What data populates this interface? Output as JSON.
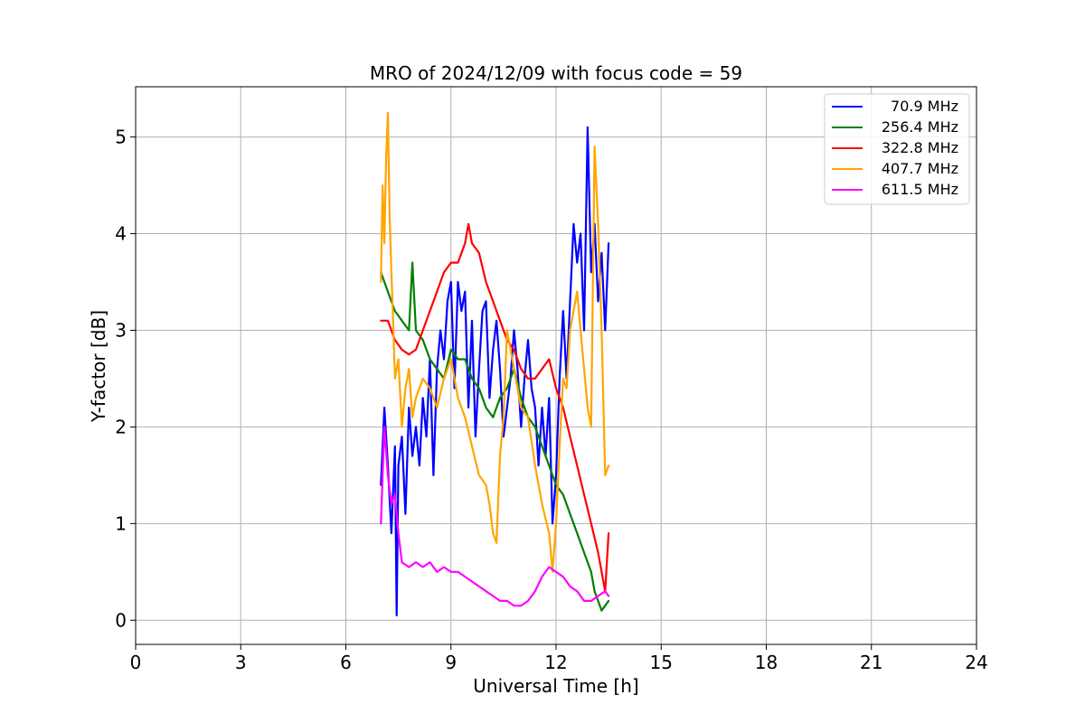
{
  "chart_data": {
    "type": "line",
    "title": "MRO of 2024/12/09 with focus code = 59",
    "xlabel": "Universal Time [h]",
    "ylabel": "Y-factor [dB]",
    "xlim": [
      0,
      24
    ],
    "ylim": [
      -0.25,
      5.52
    ],
    "xticks": [
      0,
      3,
      6,
      9,
      12,
      15,
      18,
      21,
      24
    ],
    "yticks": [
      0,
      1,
      2,
      3,
      4,
      5
    ],
    "grid": true,
    "legend_position": "top-right",
    "series": [
      {
        "name": " 70.9 MHz",
        "color": "#0000ff",
        "x": [
          7.0,
          7.1,
          7.2,
          7.3,
          7.4,
          7.45,
          7.5,
          7.6,
          7.7,
          7.8,
          7.9,
          8.0,
          8.1,
          8.2,
          8.3,
          8.4,
          8.5,
          8.6,
          8.7,
          8.8,
          8.9,
          9.0,
          9.1,
          9.2,
          9.3,
          9.4,
          9.5,
          9.6,
          9.7,
          9.8,
          9.9,
          10.0,
          10.1,
          10.2,
          10.3,
          10.4,
          10.5,
          10.6,
          10.7,
          10.8,
          10.9,
          11.0,
          11.1,
          11.2,
          11.3,
          11.4,
          11.5,
          11.6,
          11.7,
          11.8,
          11.9,
          12.0,
          12.1,
          12.2,
          12.3,
          12.4,
          12.5,
          12.6,
          12.7,
          12.8,
          12.9,
          13.0,
          13.1,
          13.2,
          13.3,
          13.4,
          13.5
        ],
        "y": [
          1.4,
          2.2,
          1.6,
          0.9,
          1.8,
          0.05,
          1.6,
          1.9,
          1.1,
          2.2,
          1.7,
          2.0,
          1.6,
          2.3,
          1.9,
          2.7,
          1.5,
          2.6,
          3.0,
          2.7,
          3.3,
          3.5,
          2.4,
          3.5,
          3.2,
          3.4,
          2.2,
          3.1,
          1.9,
          2.6,
          3.2,
          3.3,
          2.3,
          2.8,
          3.1,
          2.6,
          1.9,
          2.2,
          2.5,
          3.0,
          2.6,
          2.0,
          2.5,
          2.9,
          2.4,
          2.2,
          1.6,
          2.2,
          1.7,
          2.3,
          1.0,
          1.5,
          2.5,
          3.2,
          2.5,
          3.3,
          4.1,
          3.7,
          4.0,
          3.0,
          5.1,
          3.6,
          4.1,
          3.3,
          3.8,
          3.0,
          3.9
        ]
      },
      {
        "name": "256.4 MHz",
        "color": "#008000",
        "x": [
          7.0,
          7.2,
          7.4,
          7.6,
          7.8,
          7.9,
          8.0,
          8.2,
          8.4,
          8.6,
          8.8,
          9.0,
          9.2,
          9.4,
          9.6,
          9.8,
          10.0,
          10.2,
          10.4,
          10.6,
          10.8,
          11.0,
          11.2,
          11.4,
          11.6,
          11.8,
          12.0,
          12.2,
          12.4,
          12.6,
          12.8,
          13.0,
          13.1,
          13.2,
          13.3,
          13.4,
          13.5
        ],
        "y": [
          3.6,
          3.4,
          3.2,
          3.1,
          3.0,
          3.7,
          3.0,
          2.9,
          2.7,
          2.6,
          2.5,
          2.8,
          2.7,
          2.7,
          2.5,
          2.4,
          2.2,
          2.1,
          2.3,
          2.4,
          2.6,
          2.3,
          2.1,
          2.0,
          1.8,
          1.6,
          1.4,
          1.3,
          1.1,
          0.9,
          0.7,
          0.5,
          0.3,
          0.2,
          0.1,
          0.15,
          0.2
        ]
      },
      {
        "name": "322.8 MHz",
        "color": "#ff0000",
        "x": [
          7.0,
          7.2,
          7.4,
          7.6,
          7.8,
          8.0,
          8.2,
          8.4,
          8.6,
          8.8,
          9.0,
          9.2,
          9.4,
          9.5,
          9.6,
          9.8,
          10.0,
          10.2,
          10.4,
          10.6,
          10.8,
          11.0,
          11.2,
          11.4,
          11.6,
          11.8,
          12.0,
          12.2,
          12.4,
          12.6,
          12.8,
          13.0,
          13.2,
          13.3,
          13.4,
          13.5
        ],
        "y": [
          3.1,
          3.1,
          2.9,
          2.8,
          2.75,
          2.8,
          3.0,
          3.2,
          3.4,
          3.6,
          3.7,
          3.7,
          3.9,
          4.1,
          3.9,
          3.8,
          3.5,
          3.3,
          3.1,
          2.9,
          2.8,
          2.6,
          2.5,
          2.5,
          2.6,
          2.7,
          2.4,
          2.2,
          1.9,
          1.6,
          1.3,
          1.0,
          0.7,
          0.5,
          0.3,
          0.9
        ]
      },
      {
        "name": "407.7 MHz",
        "color": "#ffa500",
        "x": [
          7.0,
          7.05,
          7.1,
          7.15,
          7.2,
          7.25,
          7.3,
          7.35,
          7.4,
          7.5,
          7.6,
          7.7,
          7.8,
          7.9,
          8.0,
          8.2,
          8.4,
          8.6,
          8.8,
          9.0,
          9.2,
          9.4,
          9.6,
          9.8,
          10.0,
          10.1,
          10.2,
          10.3,
          10.4,
          10.5,
          10.6,
          10.8,
          11.0,
          11.2,
          11.4,
          11.6,
          11.8,
          11.9,
          12.0,
          12.1,
          12.2,
          12.3,
          12.4,
          12.5,
          12.6,
          12.7,
          12.8,
          12.9,
          13.0,
          13.1,
          13.2,
          13.3,
          13.4,
          13.5
        ],
        "y": [
          3.5,
          4.5,
          3.9,
          4.8,
          5.25,
          4.2,
          3.6,
          3.1,
          2.5,
          2.7,
          2.0,
          2.4,
          2.6,
          2.1,
          2.3,
          2.5,
          2.4,
          2.2,
          2.5,
          2.7,
          2.3,
          2.1,
          1.8,
          1.5,
          1.4,
          1.2,
          0.9,
          0.8,
          1.7,
          2.1,
          3.0,
          2.6,
          2.2,
          2.1,
          1.6,
          1.2,
          0.9,
          0.5,
          1.0,
          1.8,
          2.5,
          2.4,
          3.0,
          3.2,
          3.4,
          3.0,
          2.6,
          2.2,
          2.0,
          4.9,
          4.1,
          3.0,
          1.5,
          1.6
        ]
      },
      {
        "name": "611.5 MHz",
        "color": "#ff00ff",
        "x": [
          7.0,
          7.1,
          7.2,
          7.3,
          7.4,
          7.5,
          7.6,
          7.8,
          8.0,
          8.2,
          8.4,
          8.6,
          8.8,
          9.0,
          9.2,
          9.4,
          9.6,
          9.8,
          10.0,
          10.2,
          10.4,
          10.6,
          10.8,
          11.0,
          11.2,
          11.4,
          11.6,
          11.8,
          12.0,
          12.2,
          12.4,
          12.6,
          12.8,
          13.0,
          13.2,
          13.4,
          13.5
        ],
        "y": [
          1.0,
          2.0,
          1.5,
          1.2,
          1.3,
          0.9,
          0.6,
          0.55,
          0.6,
          0.55,
          0.6,
          0.5,
          0.55,
          0.5,
          0.5,
          0.45,
          0.4,
          0.35,
          0.3,
          0.25,
          0.2,
          0.2,
          0.15,
          0.15,
          0.2,
          0.3,
          0.45,
          0.55,
          0.5,
          0.45,
          0.35,
          0.3,
          0.2,
          0.2,
          0.25,
          0.3,
          0.25
        ]
      }
    ]
  }
}
